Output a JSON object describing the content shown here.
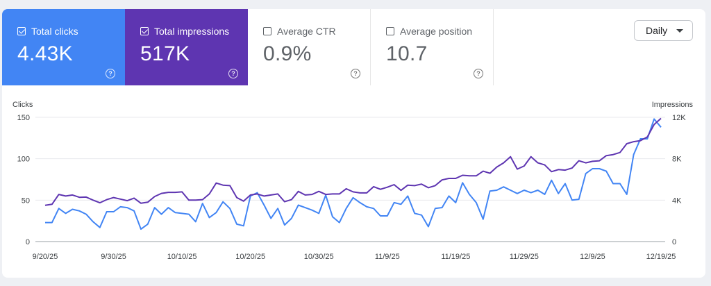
{
  "metrics": [
    {
      "key": "clicks",
      "label": "Total clicks",
      "value": "4.43K",
      "checked": true,
      "color": "#4285f4"
    },
    {
      "key": "impr",
      "label": "Total impressions",
      "value": "517K",
      "checked": true,
      "color": "#5e35b1"
    },
    {
      "key": "ctr",
      "label": "Average CTR",
      "value": "0.9%",
      "checked": false
    },
    {
      "key": "pos",
      "label": "Average position",
      "value": "10.7",
      "checked": false
    }
  ],
  "help_glyph": "?",
  "granularity": {
    "label": "Daily"
  },
  "chart_data": {
    "type": "line",
    "y_left_label": "Clicks",
    "y_right_label": "Impressions",
    "y_left_ticks": [
      "0",
      "50",
      "100",
      "150"
    ],
    "y_right_ticks": [
      "0",
      "4K",
      "8K",
      "12K"
    ],
    "ylim_left": [
      0,
      150
    ],
    "ylim_right": [
      0,
      12000
    ],
    "grid": true,
    "x_tick_labels": [
      "9/20/25",
      "9/30/25",
      "10/10/25",
      "10/20/25",
      "10/30/25",
      "11/9/25",
      "11/19/25",
      "11/29/25",
      "12/9/25",
      "12/19/25"
    ],
    "series": [
      {
        "name": "Clicks",
        "axis": "left",
        "color": "#4285f4",
        "values": [
          23,
          23,
          40,
          34,
          39,
          37,
          33,
          24,
          17,
          36,
          36,
          42,
          41,
          37,
          15,
          21,
          41,
          33,
          41,
          35,
          34,
          33,
          24,
          46,
          29,
          35,
          48,
          40,
          21,
          19,
          55,
          59,
          44,
          28,
          40,
          20,
          28,
          44,
          41,
          38,
          34,
          56,
          30,
          23,
          40,
          53,
          47,
          42,
          40,
          31,
          31,
          47,
          45,
          55,
          34,
          32,
          18,
          40,
          41,
          55,
          47,
          71,
          57,
          47,
          27,
          61,
          62,
          66,
          62,
          58,
          62,
          59,
          62,
          57,
          74,
          58,
          70,
          50,
          51,
          82,
          88,
          88,
          85,
          70,
          70,
          57,
          105,
          124,
          124,
          148,
          138
        ]
      },
      {
        "name": "Impressions",
        "axis": "right",
        "color": "#5e35b1",
        "values": [
          3500,
          3600,
          4550,
          4400,
          4500,
          4280,
          4300,
          4000,
          3750,
          4050,
          4250,
          4100,
          3950,
          4200,
          3700,
          3800,
          4350,
          4650,
          4750,
          4750,
          4800,
          4000,
          4000,
          4050,
          4600,
          5650,
          5450,
          5400,
          4250,
          3900,
          4500,
          4600,
          4400,
          4500,
          4600,
          3850,
          4050,
          4850,
          4500,
          4550,
          4850,
          4550,
          4600,
          4600,
          5100,
          4800,
          4700,
          4700,
          5300,
          5050,
          5250,
          5500,
          4950,
          5450,
          5400,
          5550,
          5200,
          5400,
          5950,
          6100,
          6100,
          6400,
          6350,
          6350,
          6800,
          6600,
          7200,
          7600,
          8200,
          7000,
          7300,
          8200,
          7600,
          7400,
          6750,
          6950,
          6900,
          7100,
          7800,
          7600,
          7750,
          7800,
          8300,
          8400,
          8600,
          9450,
          9650,
          9750,
          10100,
          11300,
          11900
        ]
      }
    ]
  }
}
